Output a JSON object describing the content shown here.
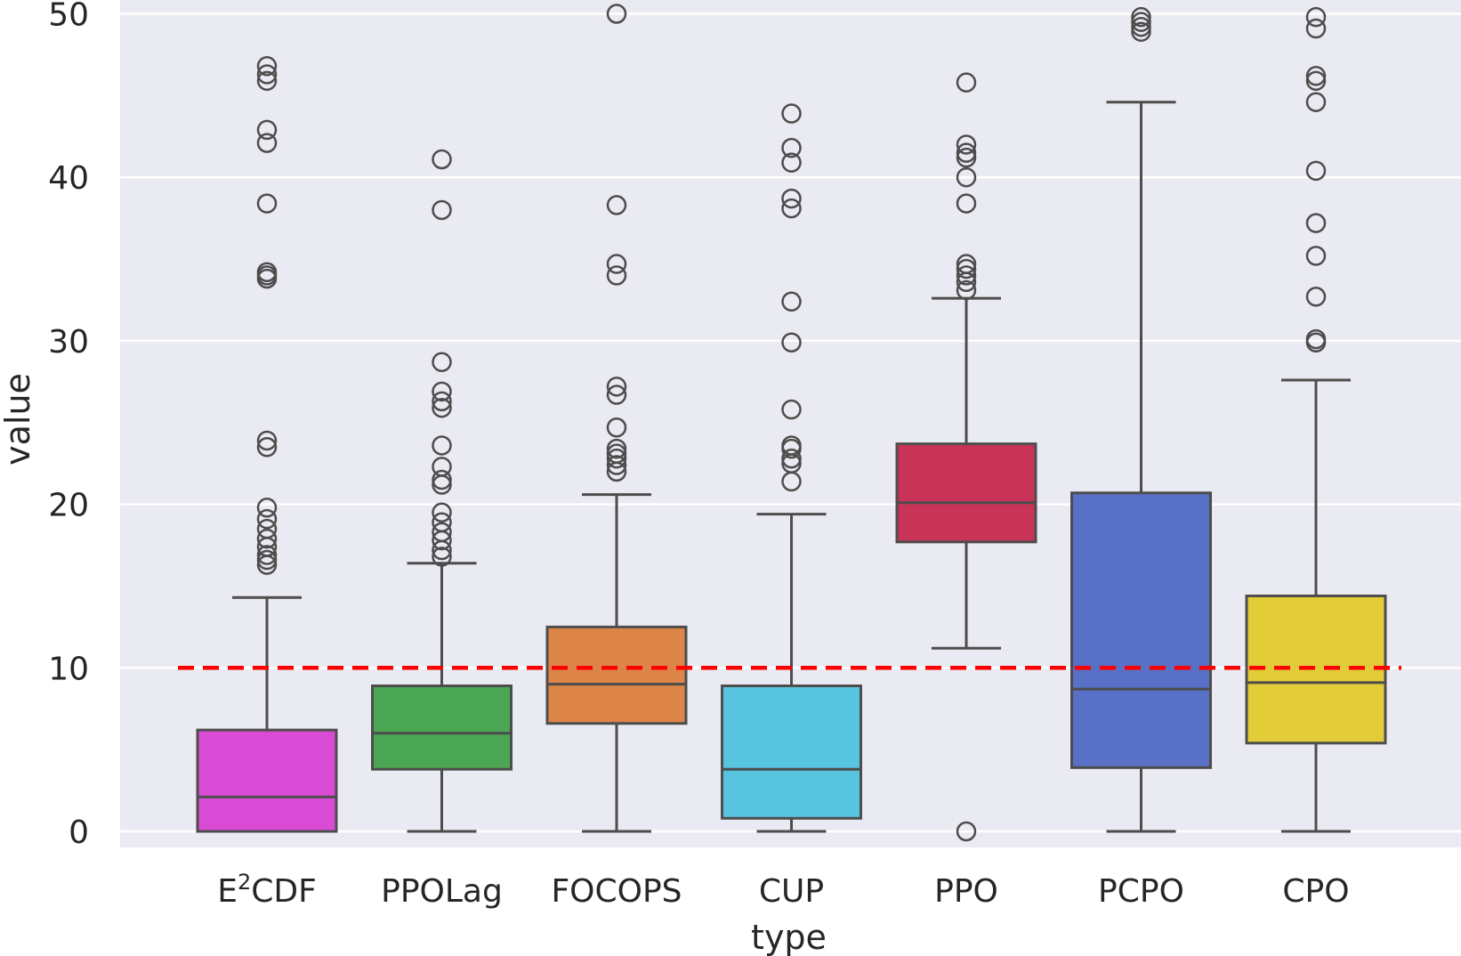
{
  "chart_data": {
    "type": "box",
    "xlabel": "type",
    "ylabel": "value",
    "ylim": [
      -1,
      50
    ],
    "yticks": [
      0,
      10,
      20,
      30,
      40,
      50
    ],
    "grid": true,
    "background": "#eaeaf2",
    "threshold": {
      "value": 10,
      "color": "#ff0000",
      "style": "dashed"
    },
    "categories": [
      {
        "label": "E",
        "sup": "2",
        "suffix": "CDF",
        "color": "#d94bd4",
        "whisker_low": 0,
        "q1": 0,
        "median": 2.1,
        "q3": 6.2,
        "whisker_high": 14.3,
        "outliers": [
          16.3,
          16.6,
          16.9,
          17.4,
          17.9,
          18.5,
          19.1,
          19.8,
          23.5,
          23.9,
          33.8,
          34.0,
          34.2,
          38.4,
          42.1,
          42.9,
          45.9,
          46.3,
          46.8
        ]
      },
      {
        "label": "PPOLag",
        "color": "#4ba754",
        "whisker_low": 0,
        "q1": 3.8,
        "median": 6.0,
        "q3": 8.9,
        "whisker_high": 16.4,
        "outliers": [
          16.8,
          17.2,
          17.8,
          18.3,
          18.9,
          19.5,
          21.2,
          21.5,
          22.3,
          23.6,
          25.9,
          26.3,
          26.9,
          28.7,
          38.0,
          41.1
        ]
      },
      {
        "label": "FOCOPS",
        "color": "#dd8548",
        "whisker_low": 0,
        "q1": 6.6,
        "median": 9.0,
        "q3": 12.5,
        "whisker_high": 20.6,
        "outliers": [
          22.0,
          22.4,
          22.8,
          23.1,
          23.4,
          24.7,
          26.7,
          27.2,
          34.0,
          34.7,
          38.3,
          50.0
        ]
      },
      {
        "label": "CUP",
        "color": "#58c5e0",
        "whisker_low": 0,
        "q1": 0.8,
        "median": 3.8,
        "q3": 8.9,
        "whisker_high": 19.4,
        "outliers": [
          21.4,
          22.5,
          22.8,
          23.4,
          23.6,
          25.8,
          29.9,
          32.4,
          38.1,
          38.7,
          40.9,
          41.8,
          43.9
        ]
      },
      {
        "label": "PPO",
        "color": "#c93358",
        "whisker_low": 11.2,
        "q1": 17.7,
        "median": 20.1,
        "q3": 23.7,
        "whisker_high": 32.6,
        "outliers": [
          0,
          33.1,
          33.6,
          34.0,
          34.4,
          34.7,
          38.4,
          40.0,
          41.2,
          41.5,
          42.0,
          45.8
        ]
      },
      {
        "label": "PCPO",
        "color": "#5870c5",
        "whisker_low": 0,
        "q1": 3.9,
        "median": 8.7,
        "q3": 20.7,
        "whisker_high": 44.6,
        "outliers": [
          48.9,
          49.2,
          49.5,
          49.8
        ]
      },
      {
        "label": "CPO",
        "color": "#e2cc37",
        "whisker_low": 0,
        "q1": 5.4,
        "median": 9.1,
        "q3": 14.4,
        "whisker_high": 27.6,
        "outliers": [
          29.9,
          30.1,
          32.7,
          35.2,
          37.2,
          40.4,
          44.6,
          45.9,
          46.2,
          49.1,
          49.8
        ]
      }
    ]
  }
}
